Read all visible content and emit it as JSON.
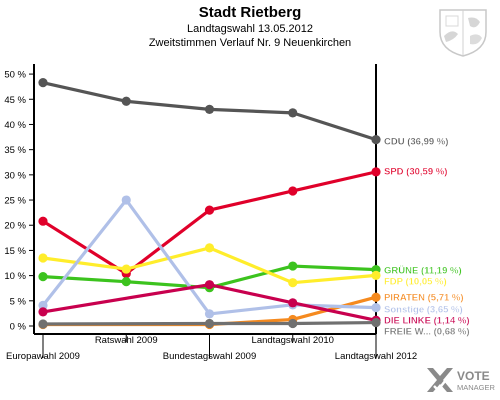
{
  "header": {
    "title": "Stadt Rietberg",
    "subtitle": "Landtagswahl 13.05.2012",
    "subtitle2": "Zweitstimmen Verlauf Nr. 9 Neuenkirchen"
  },
  "logo": {
    "line1": "VOTE",
    "line2": "MANAGER"
  },
  "chart_data": {
    "type": "line",
    "title": "Stadt Rietberg",
    "x": [
      "Europawahl 2009",
      "Ratswahl 2009",
      "Bundestagswahl 2009",
      "Landtagswahl 2010",
      "Landtagswahl 2012"
    ],
    "y_ticks": [
      "0 %",
      "5 %",
      "10 %",
      "15 %",
      "20 %",
      "25 %",
      "30 %",
      "35 %",
      "40 %",
      "45 %",
      "50 %"
    ],
    "ylim": [
      0,
      52
    ],
    "grid": false,
    "series": [
      {
        "name": "CDU",
        "label": "CDU (36,99 %)",
        "color": "#555555",
        "values": [
          48.3,
          44.6,
          43.0,
          42.3,
          36.99
        ]
      },
      {
        "name": "SPD",
        "label": "SPD (30,59 %)",
        "color": "#e0002a",
        "values": [
          20.8,
          10.4,
          23.0,
          26.8,
          30.59
        ]
      },
      {
        "name": "GRÜNE",
        "label": "GRÜNE (11,19 %)",
        "color": "#3cc31e",
        "values": [
          9.8,
          8.8,
          7.6,
          11.9,
          11.19
        ]
      },
      {
        "name": "FDP",
        "label": "FDP (10,05 %)",
        "color": "#ffed2b",
        "values": [
          13.5,
          11.3,
          15.5,
          8.6,
          10.05
        ]
      },
      {
        "name": "PIRATEN",
        "label": "PIRATEN (5,71 %)",
        "color": "#f58a1f",
        "values": [
          0.3,
          null,
          0.3,
          1.3,
          5.71
        ]
      },
      {
        "name": "Sonstige",
        "label": "Sonstige (3,65 %)",
        "color": "#b0c0e8",
        "values": [
          4.1,
          25.0,
          2.4,
          4.2,
          3.65
        ]
      },
      {
        "name": "DIE LINKE",
        "label": "DIE LINKE (1,14 %)",
        "color": "#c8004e",
        "values": [
          2.8,
          null,
          8.2,
          4.6,
          1.14
        ]
      },
      {
        "name": "FREIE W...",
        "label": "FREIE W... (0,68 %)",
        "color": "#707070",
        "values": [
          0.4,
          null,
          0.5,
          0.5,
          0.68
        ]
      }
    ]
  }
}
